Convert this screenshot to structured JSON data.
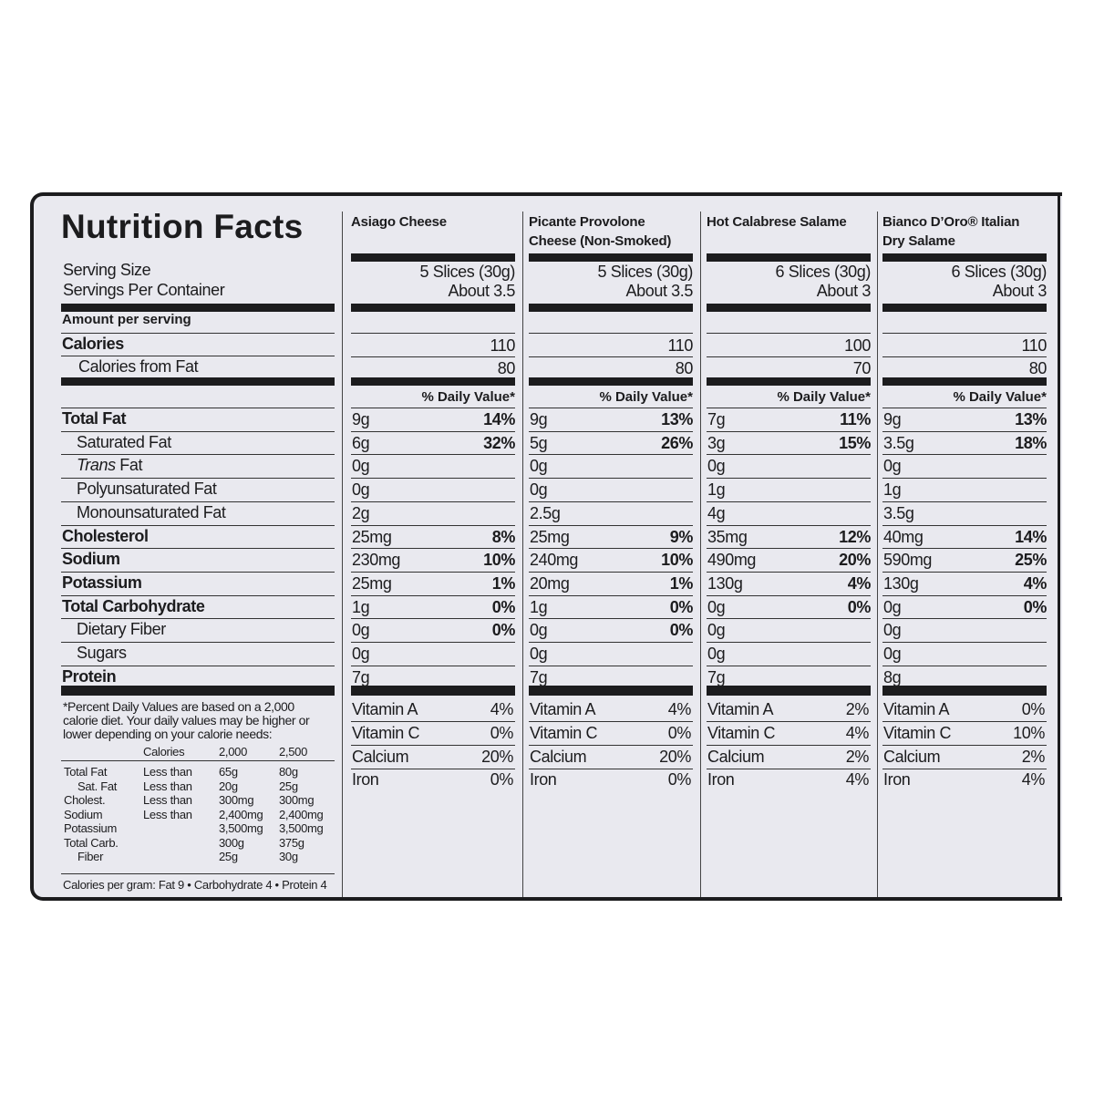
{
  "left": {
    "title": "Nutrition Facts",
    "serving_size_label": "Serving Size",
    "servings_label": "Servings Per Container",
    "amount_label": "Amount per serving",
    "calories_label": "Calories",
    "cal_fat_label": "Calories from Fat",
    "nutrients": [
      {
        "label": "Total Fat",
        "bold": true,
        "indent": false
      },
      {
        "label": "Saturated Fat",
        "bold": false,
        "indent": true
      },
      {
        "italic": "Trans",
        "label": " Fat",
        "bold": false,
        "indent": true
      },
      {
        "label": "Polyunsaturated Fat",
        "bold": false,
        "indent": true
      },
      {
        "label": "Monounsaturated Fat",
        "bold": false,
        "indent": true
      },
      {
        "label": "Cholesterol",
        "bold": true,
        "indent": false
      },
      {
        "label": "Sodium",
        "bold": true,
        "indent": false
      },
      {
        "label": "Potassium",
        "bold": true,
        "indent": false
      },
      {
        "label": "Total Carbohydrate",
        "bold": true,
        "indent": false
      },
      {
        "label": "Dietary Fiber",
        "bold": false,
        "indent": true
      },
      {
        "label": "Sugars",
        "bold": false,
        "indent": true
      },
      {
        "label": "Protein",
        "bold": true,
        "indent": false
      }
    ],
    "footnote": "*Percent Daily Values are based on a 2,000 calorie diet. Your daily values may be higher or lower depending on your calorie needs:",
    "dv_table": {
      "header": [
        "",
        "Calories",
        "2,000",
        "2,500"
      ],
      "rows": [
        [
          "Total Fat",
          "Less than",
          "65g",
          "80g"
        ],
        [
          "Sat. Fat",
          "Less than",
          "20g",
          "25g"
        ],
        [
          "Cholest.",
          "Less than",
          "300mg",
          "300mg"
        ],
        [
          "Sodium",
          "Less than",
          "2,400mg",
          "2,400mg"
        ],
        [
          "Potassium",
          "",
          "3,500mg",
          "3,500mg"
        ],
        [
          "Total Carb.",
          "",
          "300g",
          "375g"
        ],
        [
          "Fiber",
          "",
          "25g",
          "30g"
        ]
      ]
    },
    "calories_per_gram": "Calories per gram: Fat 9 • Carbohydrate 4 • Protein 4"
  },
  "products": [
    {
      "name": "Asiago Cheese",
      "serving_size": "5 Slices (30g)",
      "servings": "About 3.5",
      "calories": "110",
      "cal_fat": "80",
      "dv_header": "% Daily Value*",
      "nutrients": [
        [
          "9g",
          "14%"
        ],
        [
          "6g",
          "32%"
        ],
        [
          "0g",
          ""
        ],
        [
          "0g",
          ""
        ],
        [
          "2g",
          ""
        ],
        [
          "25mg",
          "8%"
        ],
        [
          "230mg",
          "10%"
        ],
        [
          "25mg",
          "1%"
        ],
        [
          "1g",
          "0%"
        ],
        [
          "0g",
          "0%"
        ],
        [
          "0g",
          ""
        ],
        [
          "7g",
          ""
        ]
      ],
      "vitamins": [
        [
          "Vitamin A",
          "4%"
        ],
        [
          "Vitamin C",
          "0%"
        ],
        [
          "Calcium",
          "20%"
        ],
        [
          "Iron",
          "0%"
        ]
      ]
    },
    {
      "name": "Picante Provolone Cheese (Non-Smoked)",
      "serving_size": "5 Slices (30g)",
      "servings": "About 3.5",
      "calories": "110",
      "cal_fat": "80",
      "dv_header": "% Daily Value*",
      "nutrients": [
        [
          "9g",
          "13%"
        ],
        [
          "5g",
          "26%"
        ],
        [
          "0g",
          ""
        ],
        [
          "0g",
          ""
        ],
        [
          "2.5g",
          ""
        ],
        [
          "25mg",
          "9%"
        ],
        [
          "240mg",
          "10%"
        ],
        [
          "20mg",
          "1%"
        ],
        [
          "1g",
          "0%"
        ],
        [
          "0g",
          "0%"
        ],
        [
          "0g",
          ""
        ],
        [
          "7g",
          ""
        ]
      ],
      "vitamins": [
        [
          "Vitamin A",
          "4%"
        ],
        [
          "Vitamin C",
          "0%"
        ],
        [
          "Calcium",
          "20%"
        ],
        [
          "Iron",
          "0%"
        ]
      ]
    },
    {
      "name": "Hot Calabrese Salame",
      "serving_size": "6 Slices (30g)",
      "servings": "About 3",
      "calories": "100",
      "cal_fat": "70",
      "dv_header": "% Daily Value*",
      "nutrients": [
        [
          "7g",
          "11%"
        ],
        [
          "3g",
          "15%"
        ],
        [
          "0g",
          ""
        ],
        [
          "1g",
          ""
        ],
        [
          "4g",
          ""
        ],
        [
          "35mg",
          "12%"
        ],
        [
          "490mg",
          "20%"
        ],
        [
          "130g",
          "4%"
        ],
        [
          "0g",
          "0%"
        ],
        [
          "0g",
          ""
        ],
        [
          "0g",
          ""
        ],
        [
          "7g",
          ""
        ]
      ],
      "vitamins": [
        [
          "Vitamin A",
          "2%"
        ],
        [
          "Vitamin C",
          "4%"
        ],
        [
          "Calcium",
          "2%"
        ],
        [
          "Iron",
          "4%"
        ]
      ]
    },
    {
      "name": "Bianco D’Oro® Italian Dry Salame",
      "serving_size": "6 Slices (30g)",
      "servings": "About 3",
      "calories": "110",
      "cal_fat": "80",
      "dv_header": "% Daily Value*",
      "nutrients": [
        [
          "9g",
          "13%"
        ],
        [
          "3.5g",
          "18%"
        ],
        [
          "0g",
          ""
        ],
        [
          "1g",
          ""
        ],
        [
          "3.5g",
          ""
        ],
        [
          "40mg",
          "14%"
        ],
        [
          "590mg",
          "25%"
        ],
        [
          "130g",
          "4%"
        ],
        [
          "0g",
          "0%"
        ],
        [
          "0g",
          ""
        ],
        [
          "0g",
          ""
        ],
        [
          "8g",
          ""
        ]
      ],
      "vitamins": [
        [
          "Vitamin A",
          "0%"
        ],
        [
          "Vitamin C",
          "10%"
        ],
        [
          "Calcium",
          "2%"
        ],
        [
          "Iron",
          "4%"
        ]
      ]
    }
  ]
}
